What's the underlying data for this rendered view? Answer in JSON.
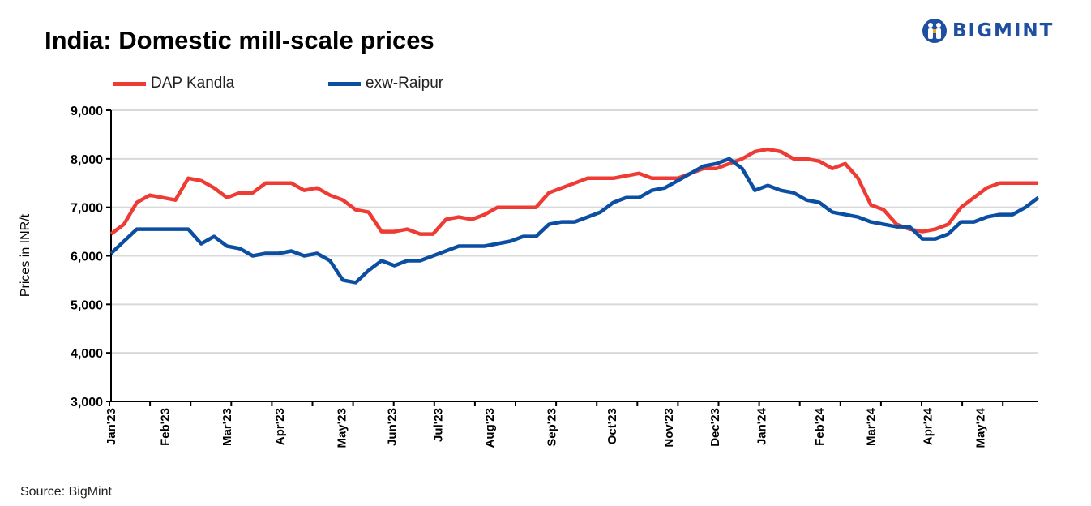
{
  "brand": {
    "name": "BIGMINT",
    "color": "#1f4fa0"
  },
  "source": "Source: BigMint",
  "chart_data": {
    "type": "line",
    "title": "India: Domestic mill-scale prices",
    "xlabel": "",
    "ylabel": "Prices in INR/t",
    "ylim": [
      3000,
      9000
    ],
    "yticks": [
      3000,
      4000,
      5000,
      6000,
      7000,
      8000,
      9000
    ],
    "ytick_labels": [
      "3,000",
      "4,000",
      "5,000",
      "6,000",
      "7,000",
      "8,000",
      "9,000"
    ],
    "grid": true,
    "legend_position": "top-left",
    "x_points": 73,
    "x_unit": "week index from Jan 2023",
    "month_labels": [
      {
        "label": "Jan'23",
        "pos": 0
      },
      {
        "label": "Feb'23",
        "pos": 4.2
      },
      {
        "label": "Mar'23",
        "pos": 9.0
      },
      {
        "label": "Apr'23",
        "pos": 13.1
      },
      {
        "label": "May'23",
        "pos": 17.9
      },
      {
        "label": "Jun'23",
        "pos": 21.8
      },
      {
        "label": "Jul'23",
        "pos": 25.4
      },
      {
        "label": "Aug'23",
        "pos": 29.4
      },
      {
        "label": "Sep'23",
        "pos": 34.2
      },
      {
        "label": "Oct'23",
        "pos": 38.9
      },
      {
        "label": "Nov'23",
        "pos": 43.3
      },
      {
        "label": "Dec'23",
        "pos": 46.9
      },
      {
        "label": "Jan'24",
        "pos": 50.5
      },
      {
        "label": "Feb'24",
        "pos": 55.0
      },
      {
        "label": "Mar'24",
        "pos": 59.0
      },
      {
        "label": "Apr'24",
        "pos": 63.4
      },
      {
        "label": "May'24",
        "pos": 67.5
      }
    ],
    "series": [
      {
        "name": "DAP Kandla",
        "color": "#ee3b33",
        "values": [
          6450,
          6650,
          7100,
          7250,
          7200,
          7150,
          7600,
          7550,
          7400,
          7200,
          7300,
          7300,
          7500,
          7500,
          7500,
          7350,
          7400,
          7250,
          7150,
          6950,
          6900,
          6500,
          6500,
          6550,
          6450,
          6450,
          6750,
          6800,
          6750,
          6850,
          7000,
          7000,
          7000,
          7000,
          7300,
          7400,
          7500,
          7600,
          7600,
          7600,
          7650,
          7700,
          7600,
          7600,
          7600,
          7700,
          7800,
          7800,
          7900,
          8000,
          8150,
          8200,
          8150,
          8000,
          8000,
          7950,
          7800,
          7900,
          7600,
          7050,
          6950,
          6650,
          6550,
          6500,
          6550,
          6650,
          7000,
          7200,
          7400,
          7500,
          7500,
          7500,
          7500
        ]
      },
      {
        "name": "exw-Raipur",
        "color": "#0b4ea2",
        "values": [
          6050,
          6300,
          6550,
          6550,
          6550,
          6550,
          6550,
          6250,
          6400,
          6200,
          6150,
          6000,
          6050,
          6050,
          6100,
          6000,
          6050,
          5900,
          5500,
          5450,
          5700,
          5900,
          5800,
          5900,
          5900,
          6000,
          6100,
          6200,
          6200,
          6200,
          6250,
          6300,
          6400,
          6400,
          6650,
          6700,
          6700,
          6800,
          6900,
          7100,
          7200,
          7200,
          7350,
          7400,
          7550,
          7700,
          7850,
          7900,
          8000,
          7800,
          7350,
          7450,
          7350,
          7300,
          7150,
          7100,
          6900,
          6850,
          6800,
          6700,
          6650,
          6600,
          6600,
          6350,
          6350,
          6450,
          6700,
          6700,
          6800,
          6850,
          6850,
          7000,
          7200
        ]
      }
    ]
  }
}
